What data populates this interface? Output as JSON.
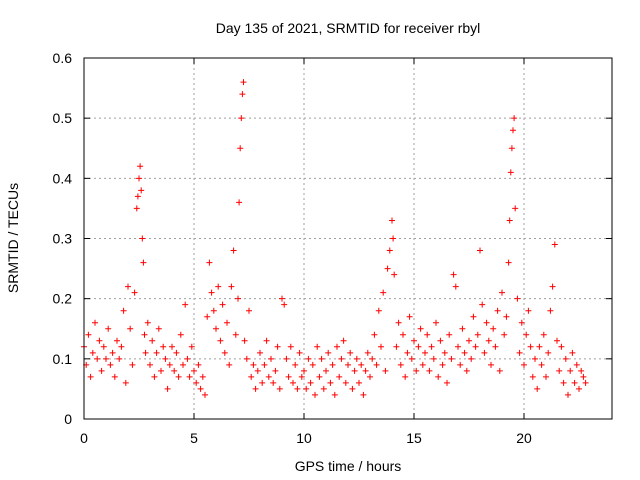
{
  "chart_data": {
    "type": "scatter",
    "title": "Day 135 of 2021, SRMTID for receiver rbyl",
    "xlabel": "GPS time / hours",
    "ylabel": "SRMTID / TECUs",
    "xlim": [
      0,
      24
    ],
    "ylim": [
      0,
      0.6
    ],
    "x_ticks": [
      0,
      5,
      10,
      15,
      20
    ],
    "x_tick_labels": [
      "0",
      "5",
      "10",
      "15",
      "20"
    ],
    "y_ticks": [
      0,
      0.1,
      0.2,
      0.3,
      0.4,
      0.5,
      0.6
    ],
    "y_tick_labels": [
      "0",
      "0.1",
      "0.2",
      "0.3",
      "0.4",
      "0.5",
      "0.6"
    ],
    "grid": true,
    "marker": "plus",
    "color": "#ff0000",
    "series": [
      {
        "name": "SRMTID",
        "points": [
          [
            0.0,
            0.12
          ],
          [
            0.1,
            0.09
          ],
          [
            0.2,
            0.14
          ],
          [
            0.3,
            0.07
          ],
          [
            0.4,
            0.11
          ],
          [
            0.5,
            0.16
          ],
          [
            0.6,
            0.1
          ],
          [
            0.7,
            0.13
          ],
          [
            0.8,
            0.08
          ],
          [
            0.9,
            0.12
          ],
          [
            1.0,
            0.1
          ],
          [
            1.1,
            0.15
          ],
          [
            1.2,
            0.09
          ],
          [
            1.3,
            0.11
          ],
          [
            1.4,
            0.07
          ],
          [
            1.5,
            0.13
          ],
          [
            1.6,
            0.1
          ],
          [
            1.7,
            0.12
          ],
          [
            1.8,
            0.18
          ],
          [
            1.9,
            0.06
          ],
          [
            2.0,
            0.22
          ],
          [
            2.1,
            0.15
          ],
          [
            2.2,
            0.09
          ],
          [
            2.3,
            0.21
          ],
          [
            2.4,
            0.35
          ],
          [
            2.45,
            0.37
          ],
          [
            2.5,
            0.4
          ],
          [
            2.55,
            0.42
          ],
          [
            2.6,
            0.38
          ],
          [
            2.65,
            0.3
          ],
          [
            2.7,
            0.26
          ],
          [
            2.75,
            0.14
          ],
          [
            2.8,
            0.11
          ],
          [
            2.9,
            0.16
          ],
          [
            3.0,
            0.09
          ],
          [
            3.1,
            0.13
          ],
          [
            3.2,
            0.07
          ],
          [
            3.3,
            0.11
          ],
          [
            3.4,
            0.15
          ],
          [
            3.5,
            0.08
          ],
          [
            3.6,
            0.12
          ],
          [
            3.7,
            0.1
          ],
          [
            3.8,
            0.05
          ],
          [
            3.9,
            0.09
          ],
          [
            4.0,
            0.12
          ],
          [
            4.1,
            0.08
          ],
          [
            4.2,
            0.11
          ],
          [
            4.3,
            0.07
          ],
          [
            4.4,
            0.14
          ],
          [
            4.5,
            0.09
          ],
          [
            4.6,
            0.19
          ],
          [
            4.7,
            0.1
          ],
          [
            4.8,
            0.07
          ],
          [
            4.9,
            0.12
          ],
          [
            5.0,
            0.08
          ],
          [
            5.1,
            0.06
          ],
          [
            5.2,
            0.09
          ],
          [
            5.3,
            0.05
          ],
          [
            5.4,
            0.07
          ],
          [
            5.5,
            0.04
          ],
          [
            5.6,
            0.17
          ],
          [
            5.7,
            0.26
          ],
          [
            5.8,
            0.21
          ],
          [
            5.9,
            0.18
          ],
          [
            6.0,
            0.15
          ],
          [
            6.1,
            0.22
          ],
          [
            6.2,
            0.13
          ],
          [
            6.3,
            0.19
          ],
          [
            6.4,
            0.11
          ],
          [
            6.5,
            0.16
          ],
          [
            6.6,
            0.09
          ],
          [
            6.7,
            0.22
          ],
          [
            6.8,
            0.28
          ],
          [
            6.9,
            0.14
          ],
          [
            7.0,
            0.2
          ],
          [
            7.05,
            0.36
          ],
          [
            7.1,
            0.45
          ],
          [
            7.15,
            0.5
          ],
          [
            7.2,
            0.54
          ],
          [
            7.25,
            0.56
          ],
          [
            7.3,
            0.13
          ],
          [
            7.4,
            0.1
          ],
          [
            7.5,
            0.18
          ],
          [
            7.6,
            0.07
          ],
          [
            7.7,
            0.09
          ],
          [
            7.8,
            0.05
          ],
          [
            7.9,
            0.08
          ],
          [
            8.0,
            0.11
          ],
          [
            8.1,
            0.06
          ],
          [
            8.2,
            0.09
          ],
          [
            8.3,
            0.13
          ],
          [
            8.4,
            0.07
          ],
          [
            8.5,
            0.1
          ],
          [
            8.6,
            0.06
          ],
          [
            8.7,
            0.08
          ],
          [
            8.8,
            0.12
          ],
          [
            8.9,
            0.05
          ],
          [
            9.0,
            0.2
          ],
          [
            9.1,
            0.19
          ],
          [
            9.2,
            0.1
          ],
          [
            9.3,
            0.07
          ],
          [
            9.4,
            0.12
          ],
          [
            9.5,
            0.06
          ],
          [
            9.6,
            0.09
          ],
          [
            9.7,
            0.05
          ],
          [
            9.8,
            0.11
          ],
          [
            9.9,
            0.07
          ],
          [
            10.0,
            0.08
          ],
          [
            10.1,
            0.05
          ],
          [
            10.2,
            0.1
          ],
          [
            10.3,
            0.06
          ],
          [
            10.4,
            0.09
          ],
          [
            10.5,
            0.04
          ],
          [
            10.6,
            0.12
          ],
          [
            10.7,
            0.07
          ],
          [
            10.8,
            0.1
          ],
          [
            10.9,
            0.05
          ],
          [
            11.0,
            0.08
          ],
          [
            11.1,
            0.11
          ],
          [
            11.2,
            0.06
          ],
          [
            11.3,
            0.09
          ],
          [
            11.4,
            0.04
          ],
          [
            11.5,
            0.12
          ],
          [
            11.6,
            0.07
          ],
          [
            11.7,
            0.1
          ],
          [
            11.8,
            0.13
          ],
          [
            11.9,
            0.06
          ],
          [
            12.0,
            0.09
          ],
          [
            12.1,
            0.11
          ],
          [
            12.2,
            0.05
          ],
          [
            12.3,
            0.08
          ],
          [
            12.4,
            0.1
          ],
          [
            12.5,
            0.06
          ],
          [
            12.6,
            0.09
          ],
          [
            12.7,
            0.04
          ],
          [
            12.8,
            0.08
          ],
          [
            12.9,
            0.11
          ],
          [
            13.0,
            0.07
          ],
          [
            13.1,
            0.1
          ],
          [
            13.2,
            0.14
          ],
          [
            13.3,
            0.09
          ],
          [
            13.4,
            0.18
          ],
          [
            13.5,
            0.12
          ],
          [
            13.6,
            0.21
          ],
          [
            13.7,
            0.08
          ],
          [
            13.8,
            0.25
          ],
          [
            13.9,
            0.28
          ],
          [
            14.0,
            0.33
          ],
          [
            14.05,
            0.3
          ],
          [
            14.1,
            0.24
          ],
          [
            14.2,
            0.12
          ],
          [
            14.3,
            0.16
          ],
          [
            14.4,
            0.09
          ],
          [
            14.5,
            0.14
          ],
          [
            14.6,
            0.07
          ],
          [
            14.7,
            0.11
          ],
          [
            14.8,
            0.17
          ],
          [
            14.9,
            0.1
          ],
          [
            15.0,
            0.13
          ],
          [
            15.1,
            0.08
          ],
          [
            15.2,
            0.12
          ],
          [
            15.3,
            0.15
          ],
          [
            15.4,
            0.09
          ],
          [
            15.5,
            0.11
          ],
          [
            15.6,
            0.14
          ],
          [
            15.7,
            0.08
          ],
          [
            15.8,
            0.12
          ],
          [
            15.9,
            0.1
          ],
          [
            16.0,
            0.16
          ],
          [
            16.1,
            0.07
          ],
          [
            16.2,
            0.13
          ],
          [
            16.3,
            0.09
          ],
          [
            16.4,
            0.11
          ],
          [
            16.5,
            0.06
          ],
          [
            16.6,
            0.14
          ],
          [
            16.7,
            0.1
          ],
          [
            16.8,
            0.24
          ],
          [
            16.9,
            0.22
          ],
          [
            17.0,
            0.12
          ],
          [
            17.1,
            0.09
          ],
          [
            17.2,
            0.15
          ],
          [
            17.3,
            0.11
          ],
          [
            17.4,
            0.08
          ],
          [
            17.5,
            0.13
          ],
          [
            17.6,
            0.1
          ],
          [
            17.7,
            0.17
          ],
          [
            17.8,
            0.12
          ],
          [
            17.9,
            0.14
          ],
          [
            18.0,
            0.28
          ],
          [
            18.1,
            0.19
          ],
          [
            18.2,
            0.11
          ],
          [
            18.3,
            0.16
          ],
          [
            18.4,
            0.13
          ],
          [
            18.5,
            0.09
          ],
          [
            18.6,
            0.15
          ],
          [
            18.7,
            0.12
          ],
          [
            18.8,
            0.18
          ],
          [
            18.9,
            0.08
          ],
          [
            19.0,
            0.21
          ],
          [
            19.1,
            0.14
          ],
          [
            19.2,
            0.17
          ],
          [
            19.3,
            0.26
          ],
          [
            19.35,
            0.33
          ],
          [
            19.4,
            0.41
          ],
          [
            19.45,
            0.45
          ],
          [
            19.5,
            0.48
          ],
          [
            19.55,
            0.5
          ],
          [
            19.6,
            0.35
          ],
          [
            19.7,
            0.2
          ],
          [
            19.8,
            0.11
          ],
          [
            19.9,
            0.16
          ],
          [
            20.0,
            0.09
          ],
          [
            20.1,
            0.14
          ],
          [
            20.2,
            0.18
          ],
          [
            20.3,
            0.12
          ],
          [
            20.4,
            0.07
          ],
          [
            20.5,
            0.1
          ],
          [
            20.6,
            0.05
          ],
          [
            20.7,
            0.12
          ],
          [
            20.8,
            0.09
          ],
          [
            20.9,
            0.14
          ],
          [
            21.0,
            0.07
          ],
          [
            21.1,
            0.11
          ],
          [
            21.2,
            0.18
          ],
          [
            21.3,
            0.22
          ],
          [
            21.4,
            0.29
          ],
          [
            21.5,
            0.13
          ],
          [
            21.6,
            0.08
          ],
          [
            21.7,
            0.12
          ],
          [
            21.8,
            0.06
          ],
          [
            21.9,
            0.1
          ],
          [
            22.0,
            0.04
          ],
          [
            22.1,
            0.08
          ],
          [
            22.2,
            0.11
          ],
          [
            22.3,
            0.06
          ],
          [
            22.4,
            0.09
          ],
          [
            22.5,
            0.05
          ],
          [
            22.6,
            0.08
          ],
          [
            22.7,
            0.07
          ],
          [
            22.8,
            0.06
          ]
        ]
      }
    ]
  }
}
